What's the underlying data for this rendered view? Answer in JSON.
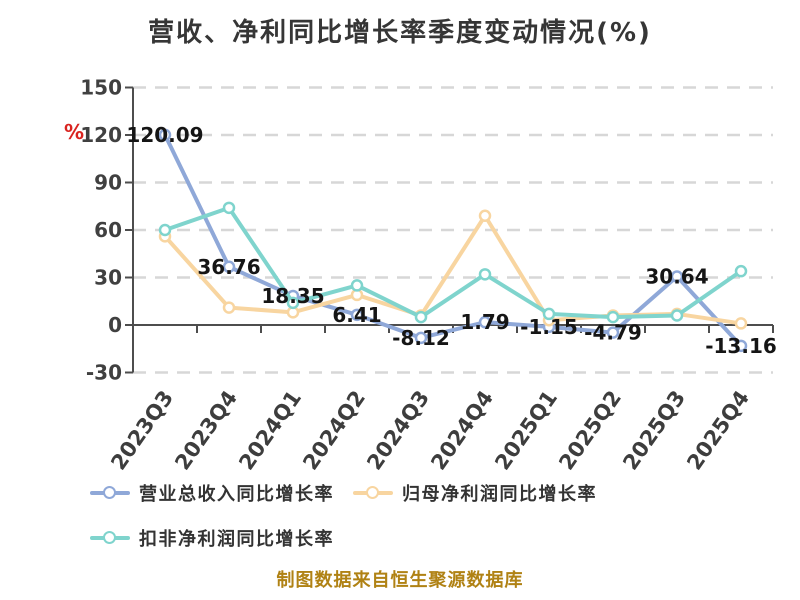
{
  "chart_data": {
    "type": "line",
    "title": "营收、净利同比增长率季度变动情况(%)",
    "unit_label": "%",
    "categories": [
      "2023Q3",
      "2023Q4",
      "2024Q1",
      "2024Q2",
      "2024Q3",
      "2024Q4",
      "2025Q1",
      "2025Q2",
      "2025Q3",
      "2025Q4"
    ],
    "yticks": [
      150,
      120,
      90,
      60,
      30,
      0,
      -30
    ],
    "ylim": [
      -30,
      150
    ],
    "grid_style": "horizontal-dashed",
    "legend_position": "bottom-left",
    "series": [
      {
        "name": "营业总收入同比增长率",
        "color": "#8fa8d8",
        "show_labels": true,
        "values": [
          120.09,
          36.76,
          18.35,
          6.41,
          -8.12,
          1.79,
          -1.15,
          -4.79,
          30.64,
          -13.16
        ]
      },
      {
        "name": "归母净利润同比增长率",
        "color": "#f8d5a0",
        "show_labels": false,
        "values": [
          56,
          11,
          8,
          19,
          6,
          69,
          3,
          6,
          7,
          1
        ]
      },
      {
        "name": "扣非净利润同比增长率",
        "color": "#7fd4cd",
        "show_labels": false,
        "values": [
          60,
          74,
          14,
          25,
          5,
          32,
          7,
          5,
          6,
          34
        ]
      }
    ],
    "footer": "制图数据来自恒生聚源数据库",
    "colors": {
      "grid": "#d7d7d7",
      "axis": "#4d4d4d",
      "title_text": "#363636",
      "axis_text": "#404040",
      "data_label": "#151515",
      "unit": "#d9231f",
      "footer_text": "#b08214",
      "background": "#ffffff",
      "marker_fill": "#ffffff"
    }
  }
}
